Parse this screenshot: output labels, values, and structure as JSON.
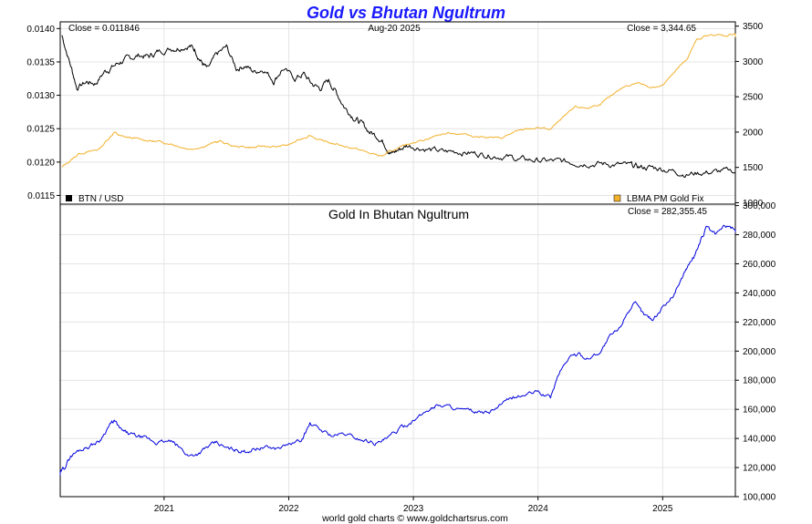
{
  "chart_data": {
    "type": "line",
    "title": "Gold vs Bhutan Ngultrum",
    "date_label": "Aug-20  2025",
    "credit": "world gold charts © www.goldchartsrus.com",
    "x_ticks": [
      "2021",
      "2022",
      "2023",
      "2024",
      "2025"
    ],
    "x_range": [
      "2020-03",
      "2025-08"
    ],
    "top_panel": {
      "close_left": "Close = 0.011846",
      "close_right": "Close = 3,344.65",
      "left_axis": {
        "ylim": [
          0.01137,
          0.0141
        ],
        "ticks": [
          "0.0140",
          "0.0135",
          "0.0130",
          "0.0125",
          "0.0120",
          "0.0115"
        ],
        "tick_values": [
          0.014,
          0.0135,
          0.013,
          0.0125,
          0.012,
          0.0115
        ]
      },
      "right_axis": {
        "ylim": [
          980,
          3560
        ],
        "ticks": [
          "3500",
          "3000",
          "2500",
          "2000",
          "1500",
          "1000"
        ],
        "tick_values": [
          3500,
          3000,
          2500,
          2000,
          1500,
          1000
        ]
      },
      "series": [
        {
          "name": "BTN / USD",
          "color": "#000000",
          "axis": "left",
          "x": [
            2020.18,
            2020.25,
            2020.3,
            2020.38,
            2020.45,
            2020.52,
            2020.58,
            2020.65,
            2020.72,
            2020.8,
            2020.88,
            2020.95,
            2021.05,
            2021.12,
            2021.2,
            2021.25,
            2021.3,
            2021.35,
            2021.42,
            2021.5,
            2021.58,
            2021.65,
            2021.72,
            2021.8,
            2021.88,
            2021.95,
            2022.05,
            2022.12,
            2022.18,
            2022.25,
            2022.32,
            2022.38,
            2022.45,
            2022.52,
            2022.58,
            2022.65,
            2022.72,
            2022.78,
            2022.82,
            2022.88,
            2022.95,
            2023.05,
            2023.15,
            2023.25,
            2023.35,
            2023.45,
            2023.55,
            2023.65,
            2023.75,
            2023.85,
            2023.95,
            2024.05,
            2024.15,
            2024.25,
            2024.35,
            2024.45,
            2024.55,
            2024.65,
            2024.75,
            2024.82,
            2024.9,
            2025.0,
            2025.1,
            2025.2,
            2025.3,
            2025.4,
            2025.5,
            2025.64
          ],
          "values": [
            0.0139,
            0.01345,
            0.01312,
            0.0132,
            0.01318,
            0.01335,
            0.01342,
            0.0135,
            0.01355,
            0.0136,
            0.01358,
            0.01365,
            0.0137,
            0.01372,
            0.01375,
            0.01368,
            0.0135,
            0.01338,
            0.0136,
            0.01372,
            0.0134,
            0.01345,
            0.01335,
            0.0134,
            0.01322,
            0.0134,
            0.01325,
            0.01332,
            0.01318,
            0.0131,
            0.01322,
            0.01305,
            0.01282,
            0.01268,
            0.01258,
            0.01245,
            0.01238,
            0.01225,
            0.01212,
            0.01218,
            0.01225,
            0.01222,
            0.01218,
            0.01215,
            0.01216,
            0.01214,
            0.01212,
            0.0121,
            0.01208,
            0.01204,
            0.01203,
            0.01202,
            0.01201,
            0.012,
            0.01199,
            0.01198,
            0.01197,
            0.01196,
            0.01194,
            0.01192,
            0.01192,
            0.0119,
            0.01186,
            0.01182,
            0.01184,
            0.01185,
            0.01186,
            0.011846
          ]
        },
        {
          "name": "LBMA PM Gold Fix",
          "color": "#f2b02b",
          "axis": "right",
          "x": [
            2020.18,
            2020.25,
            2020.32,
            2020.4,
            2020.48,
            2020.55,
            2020.6,
            2020.65,
            2020.72,
            2020.8,
            2020.88,
            2020.95,
            2021.05,
            2021.12,
            2021.2,
            2021.3,
            2021.4,
            2021.45,
            2021.55,
            2021.65,
            2021.72,
            2021.8,
            2021.9,
            2022.0,
            2022.1,
            2022.17,
            2022.25,
            2022.35,
            2022.45,
            2022.55,
            2022.65,
            2022.75,
            2022.82,
            2022.9,
            2023.0,
            2023.1,
            2023.2,
            2023.3,
            2023.4,
            2023.5,
            2023.6,
            2023.7,
            2023.8,
            2023.9,
            2024.0,
            2024.1,
            2024.2,
            2024.3,
            2024.4,
            2024.5,
            2024.6,
            2024.7,
            2024.8,
            2024.9,
            2025.0,
            2025.1,
            2025.2,
            2025.27,
            2025.33,
            2025.42,
            2025.5,
            2025.58,
            2025.64
          ],
          "values": [
            1500,
            1600,
            1700,
            1720,
            1760,
            1900,
            2000,
            1940,
            1920,
            1900,
            1880,
            1860,
            1840,
            1800,
            1760,
            1790,
            1850,
            1870,
            1800,
            1790,
            1780,
            1800,
            1790,
            1820,
            1900,
            1960,
            1880,
            1840,
            1800,
            1760,
            1700,
            1660,
            1730,
            1780,
            1860,
            1900,
            1960,
            1990,
            1970,
            1940,
            1930,
            1910,
            1990,
            2040,
            2060,
            2040,
            2200,
            2350,
            2340,
            2400,
            2520,
            2650,
            2700,
            2640,
            2660,
            2850,
            3050,
            3300,
            3350,
            3380,
            3360,
            3400,
            3344.65
          ]
        }
      ]
    },
    "bottom_panel": {
      "title": "Gold In Bhutan Ngultrum",
      "close_right": "Close = 282,355.45",
      "right_axis": {
        "ylim": [
          100000,
          301000
        ],
        "ticks": [
          "300,000",
          "280,000",
          "260,000",
          "240,000",
          "220,000",
          "200,000",
          "180,000",
          "160,000",
          "140,000",
          "120,000",
          "100,000"
        ],
        "tick_values": [
          300000,
          280000,
          260000,
          240000,
          220000,
          200000,
          180000,
          160000,
          140000,
          120000,
          100000
        ]
      },
      "series": [
        {
          "name": "",
          "color": "#0000dd",
          "x": [
            2020.16,
            2020.2,
            2020.25,
            2020.32,
            2020.4,
            2020.48,
            2020.55,
            2020.6,
            2020.66,
            2020.72,
            2020.8,
            2020.88,
            2020.95,
            2021.05,
            2021.12,
            2021.2,
            2021.28,
            2021.35,
            2021.42,
            2021.5,
            2021.58,
            2021.65,
            2021.72,
            2021.8,
            2021.9,
            2022.0,
            2022.1,
            2022.17,
            2022.25,
            2022.35,
            2022.45,
            2022.55,
            2022.65,
            2022.72,
            2022.8,
            2022.88,
            2022.95,
            2023.05,
            2023.12,
            2023.2,
            2023.3,
            2023.4,
            2023.5,
            2023.6,
            2023.7,
            2023.8,
            2023.9,
            2024.0,
            2024.1,
            2024.17,
            2024.25,
            2024.32,
            2024.4,
            2024.5,
            2024.58,
            2024.65,
            2024.72,
            2024.78,
            2024.85,
            2024.92,
            2025.0,
            2025.08,
            2025.15,
            2025.2,
            2025.25,
            2025.3,
            2025.35,
            2025.42,
            2025.5,
            2025.58,
            2025.64
          ],
          "values": [
            115000,
            120000,
            128000,
            132000,
            135000,
            138000,
            148000,
            152000,
            145000,
            143000,
            141000,
            139000,
            137000,
            138000,
            134000,
            128000,
            130000,
            134000,
            137000,
            133000,
            132000,
            131000,
            133000,
            134000,
            133000,
            136000,
            138000,
            150000,
            146000,
            142000,
            143000,
            140000,
            138000,
            137000,
            140000,
            146000,
            150000,
            155000,
            160000,
            163000,
            162000,
            159000,
            158000,
            157000,
            163000,
            168000,
            170000,
            172000,
            168000,
            185000,
            196000,
            198000,
            195000,
            200000,
            210000,
            215000,
            228000,
            232000,
            225000,
            222000,
            230000,
            238000,
            250000,
            258000,
            265000,
            275000,
            285000,
            280000,
            286000,
            284000,
            282355.45
          ]
        }
      ]
    }
  }
}
